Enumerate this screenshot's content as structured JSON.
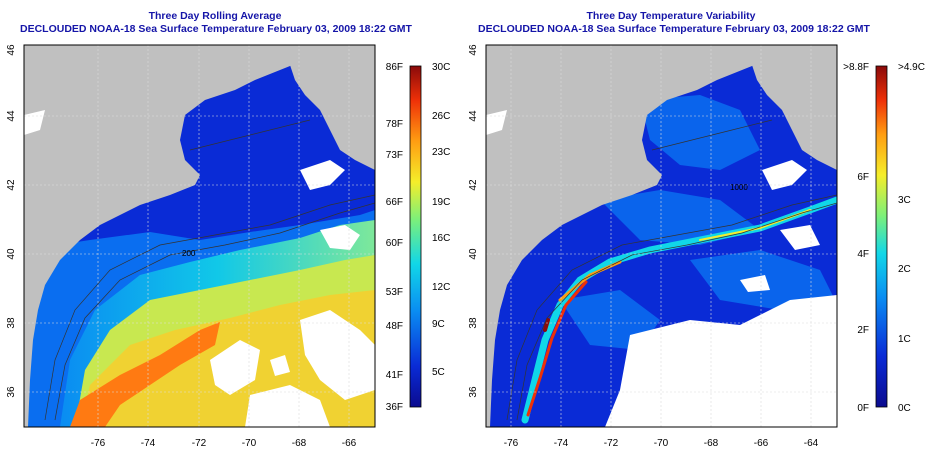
{
  "panels": [
    {
      "id": "avg",
      "title_line1": "Three Day Rolling Average",
      "title_line2": "DECLOUDED NOAA-18 Sea Surface Temperature February 03, 2009 18:22 GMT",
      "colorbar": {
        "left_labels": [
          "86F",
          "78F",
          "73F",
          "66F",
          "60F",
          "53F",
          "48F",
          "41F",
          "36F"
        ],
        "right_labels": [
          "30C",
          "26C",
          "23C",
          "19C",
          "16C",
          "12C",
          "9C",
          "5C"
        ]
      }
    },
    {
      "id": "var",
      "title_line1": "Three Day Temperature Variability",
      "title_line2": "DECLOUDED NOAA-18 Sea Surface Temperature February 03, 2009 18:22 GMT",
      "colorbar": {
        "left_labels": [
          ">8.8F",
          "6F",
          "4F",
          "2F",
          "0F"
        ],
        "right_labels": [
          ">4.9C",
          "3C",
          "2C",
          "1C",
          "0C"
        ]
      }
    }
  ],
  "axes": {
    "x_ticks": [
      "-76",
      "-74",
      "-72",
      "-70",
      "-68",
      "-66",
      "-64"
    ],
    "y_ticks": [
      "46",
      "44",
      "42",
      "40",
      "38",
      "36"
    ]
  },
  "contour_labels": [
    "200",
    "1000"
  ],
  "colors": {
    "land": "#c0c0c0",
    "title": "#1515a8",
    "cold": "#0a2bd6",
    "warm": "#ff7a12"
  }
}
